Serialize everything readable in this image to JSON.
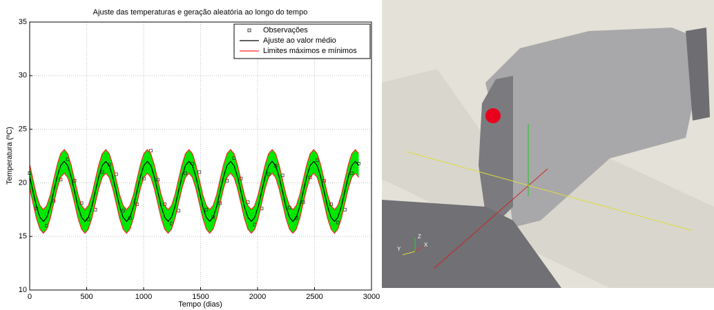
{
  "chart_data": {
    "type": "line",
    "title": "Ajuste das temperaturas e geração aleatória ao longo do tempo",
    "x_label": "Tempo (dias)",
    "y_label": "Temperatura (ºC)",
    "xlim": [
      0,
      3000
    ],
    "ylim": [
      10,
      35
    ],
    "xticks": [
      0,
      500,
      1000,
      1500,
      2000,
      2500,
      3000
    ],
    "yticks": [
      10,
      15,
      20,
      25,
      30,
      35
    ],
    "grid": true,
    "legend": "top-right",
    "band_color": "#00e800",
    "x": [
      0,
      29,
      59,
      90,
      120,
      150,
      181,
      211,
      242,
      272,
      303,
      333,
      363,
      394,
      424,
      455,
      485,
      515,
      546,
      576,
      607,
      637,
      668,
      698,
      728,
      759,
      789,
      820,
      850,
      880,
      911,
      941,
      972,
      1002,
      1033,
      1063,
      1093,
      1124,
      1154,
      1185,
      1215,
      1245,
      1276,
      1306,
      1337,
      1367,
      1398,
      1428,
      1458,
      1489,
      1519,
      1550,
      1580,
      1610,
      1641,
      1671,
      1702,
      1732,
      1763,
      1793,
      1823,
      1854,
      1884,
      1915,
      1945,
      1975,
      2006,
      2036,
      2067,
      2097,
      2128,
      2158,
      2188,
      2219,
      2249,
      2280,
      2310,
      2340,
      2371,
      2401,
      2432,
      2462,
      2493,
      2523,
      2553,
      2584,
      2614,
      2645,
      2675,
      2705,
      2736,
      2766,
      2797,
      2827,
      2858,
      2888
    ],
    "series": [
      {
        "name": "Observações",
        "color": "#333333",
        "marker": "square",
        "x": [
          0,
          59,
          150,
          211,
          272,
          333,
          394,
          455,
          515,
          576,
          637,
          698,
          759,
          820,
          880,
          941,
          1002,
          1063,
          1124,
          1185,
          1245,
          1306,
          1367,
          1428,
          1489,
          1550,
          1610,
          1671,
          1732,
          1793,
          1854,
          1915,
          1975,
          2036,
          2097,
          2158,
          2219,
          2280,
          2340,
          2401,
          2462,
          2523,
          2584,
          2645,
          2705,
          2766,
          2827,
          2888
        ],
        "values": [
          20.9,
          17.6,
          16.0,
          18.3,
          20.3,
          22.2,
          20.2,
          18.1,
          16.6,
          17.5,
          21.0,
          21.7,
          20.8,
          17.4,
          16.7,
          18.0,
          20.4,
          23.0,
          20.3,
          18.0,
          16.2,
          17.4,
          20.9,
          21.8,
          21.0,
          17.5,
          16.8,
          18.1,
          20.2,
          22.3,
          20.4,
          18.2,
          16.1,
          17.6,
          20.8,
          21.6,
          20.7,
          17.7,
          16.7,
          18.2,
          20.5,
          22.1,
          20.2,
          18.0,
          16.3,
          17.5,
          20.9,
          21.8
        ]
      },
      {
        "name": "Ajuste ao valor médio",
        "color": "#000000",
        "values": [
          20.6,
          19.2,
          17.8,
          16.78,
          16.4,
          16.78,
          17.8,
          19.2,
          20.6,
          21.62,
          22.0,
          21.62,
          20.6,
          19.2,
          17.8,
          16.78,
          16.4,
          16.78,
          17.8,
          19.2,
          20.6,
          21.62,
          22.0,
          21.62,
          20.6,
          19.2,
          17.8,
          16.78,
          16.4,
          16.78,
          17.8,
          19.2,
          20.6,
          21.62,
          22.0,
          21.62,
          20.6,
          19.2,
          17.8,
          16.78,
          16.4,
          16.78,
          17.8,
          19.2,
          20.6,
          21.62,
          22.0,
          21.62,
          20.6,
          19.2,
          17.8,
          16.78,
          16.4,
          16.78,
          17.8,
          19.2,
          20.6,
          21.62,
          22.0,
          21.62,
          20.6,
          19.2,
          17.8,
          16.78,
          16.4,
          16.78,
          17.8,
          19.2,
          20.6,
          21.62,
          22.0,
          21.62,
          20.6,
          19.2,
          17.8,
          16.78,
          16.4,
          16.78,
          17.8,
          19.2,
          20.6,
          21.62,
          22.0,
          21.62,
          20.6,
          19.2,
          17.8,
          16.78,
          16.4,
          16.78,
          17.8,
          19.2,
          20.6,
          21.62,
          22.0,
          21.62
        ]
      },
      {
        "name": "Limites máximos e mínimos",
        "color": "#ff2020",
        "upper": [
          21.7,
          20.3,
          18.9,
          17.88,
          17.5,
          17.88,
          18.9,
          20.3,
          21.7,
          22.72,
          23.1,
          22.72,
          21.7,
          20.3,
          18.9,
          17.88,
          17.5,
          17.88,
          18.9,
          20.3,
          21.7,
          22.72,
          23.1,
          22.72,
          21.7,
          20.3,
          18.9,
          17.88,
          17.5,
          17.88,
          18.9,
          20.3,
          21.7,
          22.72,
          23.1,
          22.72,
          21.7,
          20.3,
          18.9,
          17.88,
          17.5,
          17.88,
          18.9,
          20.3,
          21.7,
          22.72,
          23.1,
          22.72,
          21.7,
          20.3,
          18.9,
          17.88,
          17.5,
          17.88,
          18.9,
          20.3,
          21.7,
          22.72,
          23.1,
          22.72,
          21.7,
          20.3,
          18.9,
          17.88,
          17.5,
          17.88,
          18.9,
          20.3,
          21.7,
          22.72,
          23.1,
          22.72,
          21.7,
          20.3,
          18.9,
          17.88,
          17.5,
          17.88,
          18.9,
          20.3,
          21.7,
          22.72,
          23.1,
          22.72,
          21.7,
          20.3,
          18.9,
          17.88,
          17.5,
          17.88,
          18.9,
          20.3,
          21.7,
          22.72,
          23.1,
          22.72
        ],
        "lower": [
          19.5,
          18.1,
          16.7,
          15.68,
          15.3,
          15.68,
          16.7,
          18.1,
          19.5,
          20.52,
          20.9,
          20.52,
          19.5,
          18.1,
          16.7,
          15.68,
          15.3,
          15.68,
          16.7,
          18.1,
          19.5,
          20.52,
          20.9,
          20.52,
          19.5,
          18.1,
          16.7,
          15.68,
          15.3,
          15.68,
          16.7,
          18.1,
          19.5,
          20.52,
          20.9,
          20.52,
          19.5,
          18.1,
          16.7,
          15.68,
          15.3,
          15.68,
          16.7,
          18.1,
          19.5,
          20.52,
          20.9,
          20.52,
          19.5,
          18.1,
          16.7,
          15.68,
          15.3,
          15.68,
          16.7,
          18.1,
          19.5,
          20.52,
          20.9,
          20.52,
          19.5,
          18.1,
          16.7,
          15.68,
          15.3,
          15.68,
          16.7,
          18.1,
          19.5,
          20.52,
          20.9,
          20.52,
          19.5,
          18.1,
          16.7,
          15.68,
          15.3,
          15.68,
          16.7,
          18.1,
          19.5,
          20.52,
          20.9,
          20.52,
          19.5,
          18.1,
          16.7,
          15.68,
          15.3,
          15.68,
          16.7,
          18.1,
          19.5,
          20.52,
          20.9,
          20.52
        ]
      }
    ]
  },
  "render": {
    "axis_labels": [
      "Z",
      "Y",
      "X"
    ]
  }
}
